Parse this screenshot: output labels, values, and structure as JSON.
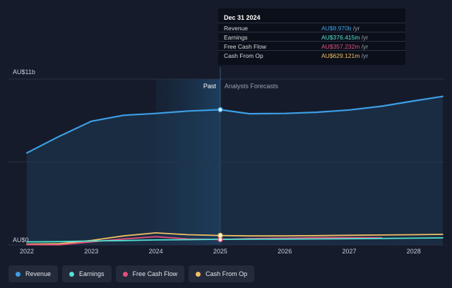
{
  "chart_data": {
    "type": "area",
    "x": [
      2022,
      2022.5,
      2023,
      2023.5,
      2024,
      2024.5,
      2025,
      2025.45,
      2026,
      2026.5,
      2027,
      2027.5,
      2028,
      2028.45
    ],
    "series": [
      {
        "name": "Revenue",
        "color": "#3d9ee5",
        "values": [
          6.1,
          7.2,
          8.2,
          8.6,
          8.72,
          8.88,
          8.97,
          8.7,
          8.72,
          8.8,
          8.95,
          9.2,
          9.55,
          9.85
        ]
      },
      {
        "name": "Earnings",
        "color": "#52e2d0",
        "values": [
          0.2,
          0.22,
          0.26,
          0.29,
          0.33,
          0.35,
          0.376,
          0.38,
          0.39,
          0.4,
          0.41,
          0.43,
          0.45,
          0.47
        ]
      },
      {
        "name": "Free Cash Flow",
        "color": "#e34f7e",
        "values": [
          0.02,
          0.01,
          0.2,
          0.4,
          0.55,
          0.4,
          0.357,
          0.42,
          0.45,
          0.48,
          0.48,
          0.48,
          null,
          null
        ]
      },
      {
        "name": "Cash From Op",
        "color": "#f2c063",
        "values": [
          0.05,
          0.08,
          0.3,
          0.6,
          0.8,
          0.68,
          0.629,
          0.6,
          0.6,
          0.62,
          0.64,
          0.66,
          0.68,
          0.7
        ]
      }
    ],
    "xticks": [
      "2022",
      "2023",
      "2024",
      "2025",
      "2026",
      "2027",
      "2028"
    ],
    "ylim": [
      0,
      11
    ],
    "yticks": [
      {
        "value": 11,
        "label": "AU$11b"
      },
      {
        "value": 0,
        "label": "AU$0"
      }
    ],
    "divider_x": 2025,
    "past_start_x": 2024,
    "past_label": "Past",
    "forecast_label": "Analysts Forecasts",
    "grid": true
  },
  "tooltip": {
    "date": "Dec 31 2024",
    "rows": [
      {
        "label": "Revenue",
        "value": "AU$8.970b",
        "unit": " /yr",
        "color": "#3d9ee5"
      },
      {
        "label": "Earnings",
        "value": "AU$376.415m",
        "unit": " /yr",
        "color": "#52e2d0"
      },
      {
        "label": "Free Cash Flow",
        "value": "AU$357.232m",
        "unit": " /yr",
        "color": "#e34f7e"
      },
      {
        "label": "Cash From Op",
        "value": "AU$629.121m",
        "unit": " /yr",
        "color": "#f2c063"
      }
    ]
  },
  "legend": [
    {
      "label": "Revenue",
      "color": "#3d9ee5"
    },
    {
      "label": "Earnings",
      "color": "#52e2d0"
    },
    {
      "label": "Free Cash Flow",
      "color": "#e34f7e"
    },
    {
      "label": "Cash From Op",
      "color": "#f2c063"
    }
  ]
}
